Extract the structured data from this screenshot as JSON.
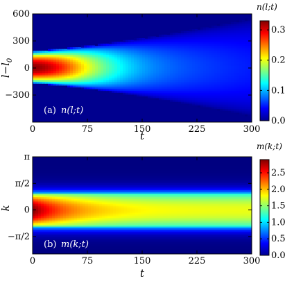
{
  "chart_data": [
    {
      "type": "heatmap",
      "panel_label": "(a)",
      "quantity_label": "n(l;t)",
      "xlabel": "t",
      "ylabel": "l−l",
      "ylabel_sub": "0",
      "xlim": [
        0,
        300
      ],
      "ylim": [
        -600,
        600
      ],
      "xticks": [
        "0",
        "75",
        "150",
        "225",
        "300"
      ],
      "xtick_values": [
        0,
        75,
        150,
        225,
        300
      ],
      "yticks": [
        "600",
        "300",
        "0",
        "−300"
      ],
      "ytick_values": [
        600,
        300,
        0,
        -300
      ],
      "colorbar_title": "n(l;t)",
      "colorbar_range": [
        0.0,
        0.33
      ],
      "colorbar_ticks": [
        "0.3",
        "0.2",
        "0.1",
        "0.0"
      ],
      "colorbar_tick_values": [
        0.3,
        0.2,
        0.1,
        0.0
      ],
      "colormap": "jet",
      "background_color": "#00008f",
      "description_of_field": {
        "peak_value": 0.33,
        "peak_at": {
          "t": 15,
          "l_minus_l0": 0
        },
        "initial_half_width": 180,
        "half_width_at_t300": 540,
        "center": 0
      }
    },
    {
      "type": "heatmap",
      "panel_label": "(b)",
      "quantity_label": "m(k;t)",
      "xlabel": "t",
      "ylabel": "k",
      "xlim": [
        0,
        300
      ],
      "ylim": [
        -2.6,
        3.14159
      ],
      "xticks": [
        "0",
        "75",
        "150",
        "225",
        "300"
      ],
      "xtick_values": [
        0,
        75,
        150,
        225,
        300
      ],
      "yticks": [
        "π",
        "π/2",
        "0",
        "−π/2"
      ],
      "ytick_values": [
        3.14159,
        1.5708,
        0,
        -1.5708
      ],
      "colorbar_title": "m(k;t)",
      "colorbar_range": [
        0.0,
        2.9
      ],
      "colorbar_ticks": [
        "2.5",
        "2.0",
        "1.5",
        "1.0",
        "0.5",
        "0.0"
      ],
      "colorbar_tick_values": [
        2.5,
        2.0,
        1.5,
        1.0,
        0.5,
        0.0
      ],
      "colormap": "jet",
      "background_color": "#00008f",
      "description_of_field": {
        "peak_value": 2.9,
        "peak_at": {
          "t": 5,
          "k": 0
        },
        "late_time_value": 1.75,
        "band_half_width_k": 1.0
      }
    }
  ]
}
